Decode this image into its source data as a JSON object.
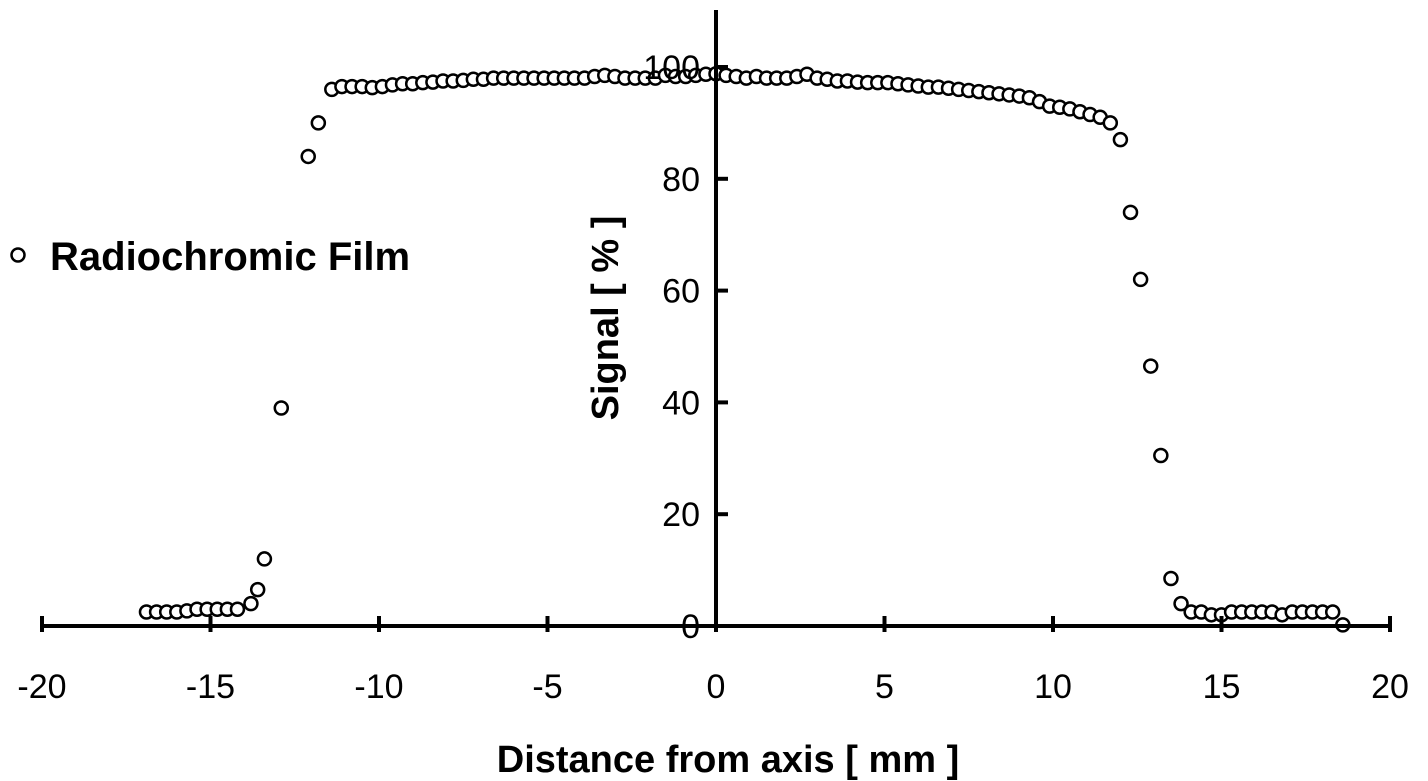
{
  "chart_data": {
    "type": "scatter",
    "xlabel": "Distance from axis [ mm ]",
    "ylabel": "Signal [ % ]",
    "xlim": [
      -20,
      20
    ],
    "ylim": [
      0,
      110
    ],
    "x_ticks": [
      "-20",
      "-15",
      "-10",
      "-5",
      "0",
      "5",
      "10",
      "15",
      "20"
    ],
    "y_ticks": [
      "0",
      "20",
      "40",
      "60",
      "80",
      "100"
    ],
    "grid": false,
    "legend_position": "left",
    "series": [
      {
        "name": "Radiochromic Film",
        "marker": "open-circle",
        "color": "#000000",
        "points": [
          [
            -16.9,
            2.5
          ],
          [
            -16.6,
            2.5
          ],
          [
            -16.3,
            2.5
          ],
          [
            -16.0,
            2.5
          ],
          [
            -15.7,
            2.7
          ],
          [
            -15.4,
            3.0
          ],
          [
            -15.1,
            3.0
          ],
          [
            -14.8,
            3.0
          ],
          [
            -14.5,
            3.0
          ],
          [
            -14.2,
            3.0
          ],
          [
            -13.8,
            4.0
          ],
          [
            -13.6,
            6.5
          ],
          [
            -13.4,
            12.0
          ],
          [
            -12.9,
            39.0
          ],
          [
            -12.1,
            84.0
          ],
          [
            -11.8,
            90.0
          ],
          [
            -11.4,
            96.0
          ],
          [
            -11.1,
            96.5
          ],
          [
            -10.8,
            96.5
          ],
          [
            -10.5,
            96.5
          ],
          [
            -10.2,
            96.3
          ],
          [
            -9.9,
            96.5
          ],
          [
            -9.6,
            96.8
          ],
          [
            -9.3,
            97.0
          ],
          [
            -9.0,
            97.0
          ],
          [
            -8.7,
            97.2
          ],
          [
            -8.4,
            97.3
          ],
          [
            -8.1,
            97.5
          ],
          [
            -7.8,
            97.5
          ],
          [
            -7.5,
            97.6
          ],
          [
            -7.2,
            97.8
          ],
          [
            -6.9,
            97.8
          ],
          [
            -6.6,
            98.0
          ],
          [
            -6.3,
            98.0
          ],
          [
            -6.0,
            98.0
          ],
          [
            -5.7,
            98.0
          ],
          [
            -5.4,
            98.0
          ],
          [
            -5.1,
            98.0
          ],
          [
            -4.8,
            98.0
          ],
          [
            -4.5,
            98.0
          ],
          [
            -4.2,
            98.0
          ],
          [
            -3.9,
            98.0
          ],
          [
            -3.6,
            98.3
          ],
          [
            -3.3,
            98.5
          ],
          [
            -3.0,
            98.3
          ],
          [
            -2.7,
            98.0
          ],
          [
            -2.4,
            98.0
          ],
          [
            -2.1,
            98.0
          ],
          [
            -1.8,
            98.0
          ],
          [
            -1.5,
            98.5
          ],
          [
            -1.2,
            98.3
          ],
          [
            -0.9,
            98.3
          ],
          [
            -0.6,
            98.5
          ],
          [
            -0.3,
            98.7
          ],
          [
            0.0,
            98.8
          ],
          [
            0.3,
            98.5
          ],
          [
            0.6,
            98.3
          ],
          [
            0.9,
            98.0
          ],
          [
            1.2,
            98.3
          ],
          [
            1.5,
            98.0
          ],
          [
            1.8,
            98.0
          ],
          [
            2.1,
            98.0
          ],
          [
            2.4,
            98.3
          ],
          [
            2.7,
            98.7
          ],
          [
            3.0,
            98.0
          ],
          [
            3.3,
            97.8
          ],
          [
            3.6,
            97.5
          ],
          [
            3.9,
            97.5
          ],
          [
            4.2,
            97.3
          ],
          [
            4.5,
            97.2
          ],
          [
            4.8,
            97.2
          ],
          [
            5.1,
            97.2
          ],
          [
            5.4,
            97.0
          ],
          [
            5.7,
            96.8
          ],
          [
            6.0,
            96.6
          ],
          [
            6.3,
            96.4
          ],
          [
            6.6,
            96.4
          ],
          [
            6.9,
            96.2
          ],
          [
            7.2,
            96.0
          ],
          [
            7.5,
            95.8
          ],
          [
            7.8,
            95.6
          ],
          [
            8.1,
            95.4
          ],
          [
            8.4,
            95.2
          ],
          [
            8.7,
            95.0
          ],
          [
            9.0,
            94.8
          ],
          [
            9.3,
            94.5
          ],
          [
            9.6,
            93.8
          ],
          [
            9.9,
            93.0
          ],
          [
            10.2,
            92.8
          ],
          [
            10.5,
            92.5
          ],
          [
            10.8,
            92.0
          ],
          [
            11.1,
            91.5
          ],
          [
            11.4,
            91.0
          ],
          [
            11.7,
            90.0
          ],
          [
            12.0,
            87.0
          ],
          [
            12.3,
            74.0
          ],
          [
            12.6,
            62.0
          ],
          [
            12.9,
            46.5
          ],
          [
            13.2,
            30.5
          ],
          [
            13.5,
            8.5
          ],
          [
            13.8,
            4.0
          ],
          [
            14.1,
            2.5
          ],
          [
            14.4,
            2.5
          ],
          [
            14.7,
            2.0
          ],
          [
            15.0,
            2.0
          ],
          [
            15.3,
            2.5
          ],
          [
            15.6,
            2.5
          ],
          [
            15.9,
            2.5
          ],
          [
            16.2,
            2.5
          ],
          [
            16.5,
            2.5
          ],
          [
            16.8,
            2.0
          ],
          [
            17.1,
            2.5
          ],
          [
            17.4,
            2.5
          ],
          [
            17.7,
            2.5
          ],
          [
            18.0,
            2.5
          ],
          [
            18.3,
            2.5
          ],
          [
            18.6,
            0.2
          ]
        ]
      }
    ]
  }
}
